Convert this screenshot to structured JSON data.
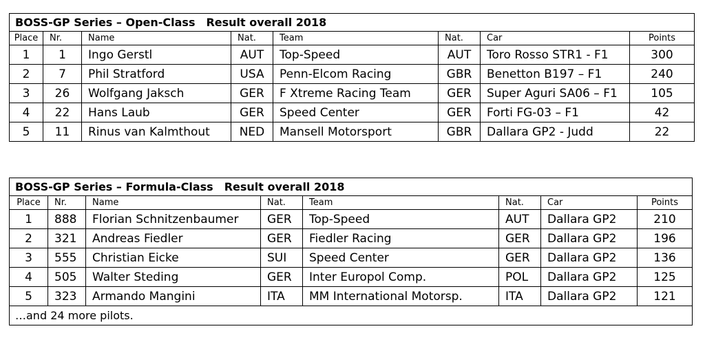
{
  "open_class": {
    "title": "BOSS-GP Series – Open-Class",
    "subtitle": "Result overall  2018",
    "headers": [
      "Place",
      "Nr.",
      "Name",
      "Nat.",
      "Team",
      "Nat.",
      "Car",
      "Points"
    ],
    "rows": [
      [
        "1",
        "1",
        "Ingo Gerstl",
        "AUT",
        "Top-Speed",
        "AUT",
        "Toro Rosso STR1 - F1",
        "300"
      ],
      [
        "2",
        "7",
        "Phil Stratford",
        "USA",
        "Penn-Elcom Racing",
        "GBR",
        "Benetton B197 – F1",
        "240"
      ],
      [
        "3",
        "26",
        "Wolfgang Jaksch",
        "GER",
        "F Xtreme Racing Team",
        "GER",
        "Super Aguri SA06 – F1",
        "105"
      ],
      [
        "4",
        "22",
        "Hans Laub",
        "GER",
        "Speed Center",
        "GER",
        "Forti FG-03 – F1",
        "42"
      ],
      [
        "5",
        "11",
        "Rinus van Kalmthout",
        "NED",
        "Mansell Motorsport",
        "GBR",
        "Dallara GP2 - Judd",
        "22"
      ]
    ]
  },
  "formula_class": {
    "title": "BOSS-GP Series – Formula-Class",
    "subtitle": "Result overall  2018",
    "headers": [
      "Place",
      "Nr.",
      "Name",
      "Nat.",
      "Team",
      "Nat.",
      "Car",
      "Points"
    ],
    "rows": [
      [
        "1",
        "888",
        "Florian Schnitzenbaumer",
        "GER",
        "Top-Speed",
        "AUT",
        "Dallara GP2",
        "210"
      ],
      [
        "2",
        "321",
        "Andreas Fiedler",
        "GER",
        "Fiedler Racing",
        "GER",
        "Dallara GP2",
        "196"
      ],
      [
        "3",
        "555",
        "Christian Eicke",
        "SUI",
        "Speed Center",
        "GER",
        "Dallara GP2",
        "136"
      ],
      [
        "4",
        "505",
        "Walter Steding",
        "GER",
        "Inter Europol Comp.",
        "POL",
        "Dallara GP2",
        "125"
      ],
      [
        "5",
        "323",
        "Armando Mangini",
        "ITA",
        "MM International Motorsp.",
        "ITA",
        "Dallara GP2",
        "121"
      ]
    ],
    "footer": "…and 24 more pilots."
  }
}
